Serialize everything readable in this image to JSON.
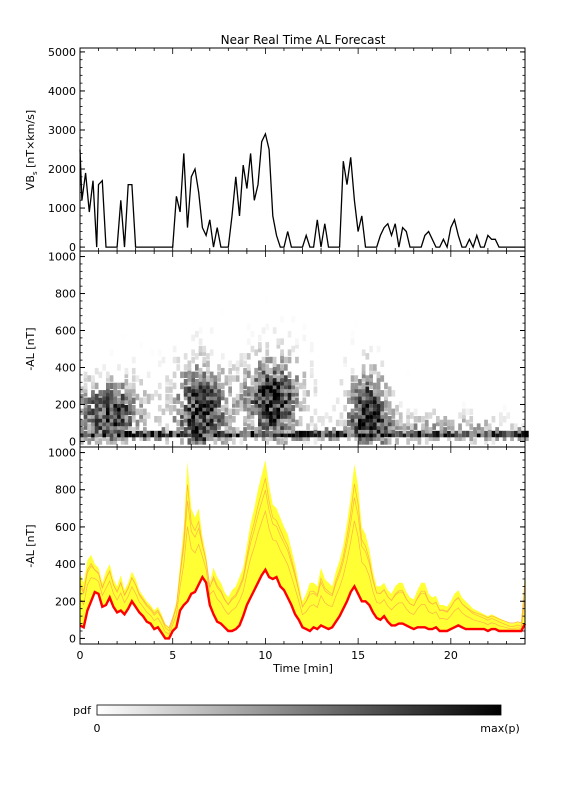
{
  "chart_data": [
    {
      "type": "line",
      "title": "Near Real Time AL Forecast",
      "ylabel": "VB",
      "ylabel_sub": "s",
      "ylabel_unit": " [nT×km/s]",
      "ylim": [
        -100,
        5100
      ],
      "yticks": [
        0,
        1000,
        2000,
        3000,
        4000,
        5000
      ],
      "xlim": [
        0,
        24
      ],
      "x": [
        0.0,
        0.1,
        0.3,
        0.5,
        0.7,
        0.9,
        1.0,
        1.2,
        1.4,
        1.6,
        1.8,
        2.0,
        2.2,
        2.4,
        2.6,
        2.8,
        3.0,
        3.2,
        3.4,
        3.6,
        3.8,
        4.0,
        4.2,
        4.4,
        4.6,
        4.8,
        5.0,
        5.2,
        5.4,
        5.6,
        5.8,
        6.0,
        6.2,
        6.4,
        6.6,
        6.8,
        7.0,
        7.2,
        7.4,
        7.6,
        7.8,
        8.0,
        8.2,
        8.4,
        8.6,
        8.8,
        9.0,
        9.2,
        9.4,
        9.6,
        9.8,
        10.0,
        10.2,
        10.4,
        10.6,
        10.8,
        11.0,
        11.2,
        11.4,
        11.6,
        11.8,
        12.0,
        12.2,
        12.4,
        12.6,
        12.8,
        13.0,
        13.2,
        13.4,
        13.6,
        13.8,
        14.0,
        14.2,
        14.4,
        14.6,
        14.8,
        15.0,
        15.2,
        15.4,
        15.6,
        15.8,
        16.0,
        16.2,
        16.4,
        16.6,
        16.8,
        17.0,
        17.2,
        17.4,
        17.6,
        17.8,
        18.0,
        18.2,
        18.4,
        18.6,
        18.8,
        19.0,
        19.2,
        19.4,
        19.6,
        19.8,
        20.0,
        20.2,
        20.4,
        20.6,
        20.8,
        21.0,
        21.2,
        21.4,
        21.6,
        21.8,
        22.0,
        22.2,
        22.4,
        22.6,
        22.8,
        23.0,
        23.2,
        23.4,
        23.6,
        23.8,
        24.0
      ],
      "values": [
        2500,
        1200,
        1900,
        900,
        1700,
        0,
        1600,
        1700,
        0,
        0,
        0,
        0,
        1200,
        0,
        1600,
        1600,
        0,
        0,
        0,
        0,
        0,
        0,
        0,
        0,
        0,
        0,
        0,
        1300,
        900,
        2400,
        500,
        1800,
        2000,
        1400,
        500,
        300,
        700,
        0,
        500,
        0,
        0,
        0,
        800,
        1800,
        800,
        2100,
        1500,
        2400,
        1200,
        1600,
        2700,
        2900,
        2500,
        800,
        300,
        0,
        0,
        400,
        0,
        0,
        0,
        0,
        300,
        0,
        0,
        700,
        0,
        600,
        0,
        0,
        0,
        0,
        2200,
        1600,
        2300,
        1200,
        400,
        800,
        0,
        0,
        0,
        0,
        300,
        500,
        600,
        300,
        600,
        0,
        500,
        400,
        0,
        0,
        0,
        0,
        300,
        400,
        200,
        0,
        0,
        200,
        0,
        500,
        700,
        300,
        0,
        0,
        200,
        0,
        300,
        0,
        0,
        300,
        200,
        200,
        0,
        0,
        0,
        0,
        0,
        0,
        0,
        0
      ]
    },
    {
      "type": "heatmap",
      "ylabel": "-AL [nT]",
      "ylim": [
        -30,
        1030
      ],
      "yticks": [
        0,
        200,
        400,
        600,
        800,
        1000
      ],
      "xlim": [
        0,
        24
      ],
      "centers": [
        {
          "x": 1.5,
          "y": 150,
          "amp": 0.9,
          "sx": 1.3,
          "sy": 130
        },
        {
          "x": 6.4,
          "y": 160,
          "amp": 1.0,
          "sx": 1.0,
          "sy": 180
        },
        {
          "x": 10.3,
          "y": 230,
          "amp": 1.0,
          "sx": 1.1,
          "sy": 160
        },
        {
          "x": 15.4,
          "y": 170,
          "amp": 0.9,
          "sx": 0.8,
          "sy": 150
        },
        {
          "x": 19.0,
          "y": 60,
          "amp": 0.5,
          "sx": 3.0,
          "sy": 60
        }
      ],
      "baseline_y": 40
    },
    {
      "type": "area",
      "ylabel": "-AL [nT]",
      "xlabel": "Time [min]",
      "ylim": [
        -30,
        1030
      ],
      "yticks": [
        0,
        200,
        400,
        600,
        800,
        1000
      ],
      "xlim": [
        0,
        24
      ],
      "xticks": [
        0,
        5,
        10,
        15,
        20
      ],
      "x": [
        0.0,
        0.2,
        0.4,
        0.6,
        0.8,
        1.0,
        1.2,
        1.4,
        1.6,
        1.8,
        2.0,
        2.2,
        2.4,
        2.6,
        2.8,
        3.0,
        3.2,
        3.4,
        3.6,
        3.8,
        4.0,
        4.2,
        4.4,
        4.6,
        4.8,
        5.0,
        5.2,
        5.4,
        5.6,
        5.8,
        6.0,
        6.2,
        6.4,
        6.6,
        6.8,
        7.0,
        7.2,
        7.4,
        7.6,
        7.8,
        8.0,
        8.2,
        8.4,
        8.6,
        8.8,
        9.0,
        9.2,
        9.4,
        9.6,
        9.8,
        10.0,
        10.2,
        10.4,
        10.6,
        10.8,
        11.0,
        11.2,
        11.4,
        11.6,
        11.8,
        12.0,
        12.2,
        12.4,
        12.6,
        12.8,
        13.0,
        13.2,
        13.4,
        13.6,
        13.8,
        14.0,
        14.2,
        14.4,
        14.6,
        14.8,
        15.0,
        15.2,
        15.4,
        15.6,
        15.8,
        16.0,
        16.2,
        16.4,
        16.6,
        16.8,
        17.0,
        17.2,
        17.4,
        17.6,
        17.8,
        18.0,
        18.2,
        18.4,
        18.6,
        18.8,
        19.0,
        19.2,
        19.4,
        19.6,
        19.8,
        20.0,
        20.2,
        20.4,
        20.6,
        20.8,
        21.0,
        21.2,
        21.4,
        21.6,
        21.8,
        22.0,
        22.2,
        22.4,
        22.6,
        22.8,
        23.0,
        23.2,
        23.4,
        23.6,
        23.8,
        24.0
      ],
      "series": [
        {
          "role": "band_upper",
          "color": "#ffff33",
          "values": [
            350,
            300,
            420,
            450,
            400,
            380,
            300,
            360,
            400,
            320,
            280,
            340,
            260,
            300,
            360,
            320,
            260,
            230,
            200,
            180,
            150,
            170,
            130,
            80,
            60,
            120,
            200,
            400,
            600,
            950,
            700,
            650,
            700,
            550,
            450,
            300,
            380,
            330,
            300,
            250,
            220,
            260,
            280,
            330,
            380,
            500,
            620,
            700,
            800,
            880,
            960,
            820,
            720,
            700,
            650,
            600,
            560,
            480,
            400,
            300,
            200,
            240,
            300,
            300,
            280,
            380,
            320,
            300,
            280,
            360,
            420,
            500,
            620,
            760,
            940,
            820,
            600,
            560,
            480,
            360,
            280,
            280,
            300,
            260,
            240,
            280,
            300,
            300,
            250,
            220,
            210,
            260,
            300,
            300,
            240,
            220,
            230,
            180,
            180,
            170,
            200,
            240,
            260,
            220,
            200,
            180,
            160,
            150,
            140,
            130,
            120,
            130,
            120,
            110,
            100,
            90,
            80,
            80,
            90,
            80,
            360
          ]
        },
        {
          "role": "median",
          "color": "#ff0000",
          "values": [
            70,
            60,
            150,
            200,
            250,
            240,
            170,
            180,
            220,
            170,
            140,
            150,
            130,
            160,
            200,
            170,
            140,
            120,
            90,
            80,
            50,
            60,
            30,
            0,
            0,
            40,
            60,
            150,
            180,
            200,
            240,
            250,
            290,
            330,
            300,
            180,
            130,
            90,
            80,
            60,
            40,
            40,
            50,
            70,
            120,
            180,
            220,
            260,
            300,
            340,
            370,
            330,
            320,
            330,
            280,
            260,
            220,
            180,
            130,
            100,
            60,
            50,
            40,
            60,
            50,
            70,
            60,
            50,
            60,
            90,
            120,
            160,
            200,
            250,
            280,
            240,
            200,
            200,
            180,
            140,
            110,
            100,
            120,
            90,
            70,
            70,
            80,
            80,
            70,
            60,
            50,
            60,
            60,
            60,
            50,
            50,
            60,
            40,
            40,
            40,
            50,
            60,
            70,
            60,
            50,
            50,
            50,
            50,
            50,
            50,
            40,
            50,
            50,
            40,
            40,
            40,
            40,
            40,
            40,
            40,
            80
          ]
        }
      ]
    }
  ],
  "colorbar": {
    "label": "pdf",
    "min_label": "0",
    "max_label": "max(p)"
  }
}
